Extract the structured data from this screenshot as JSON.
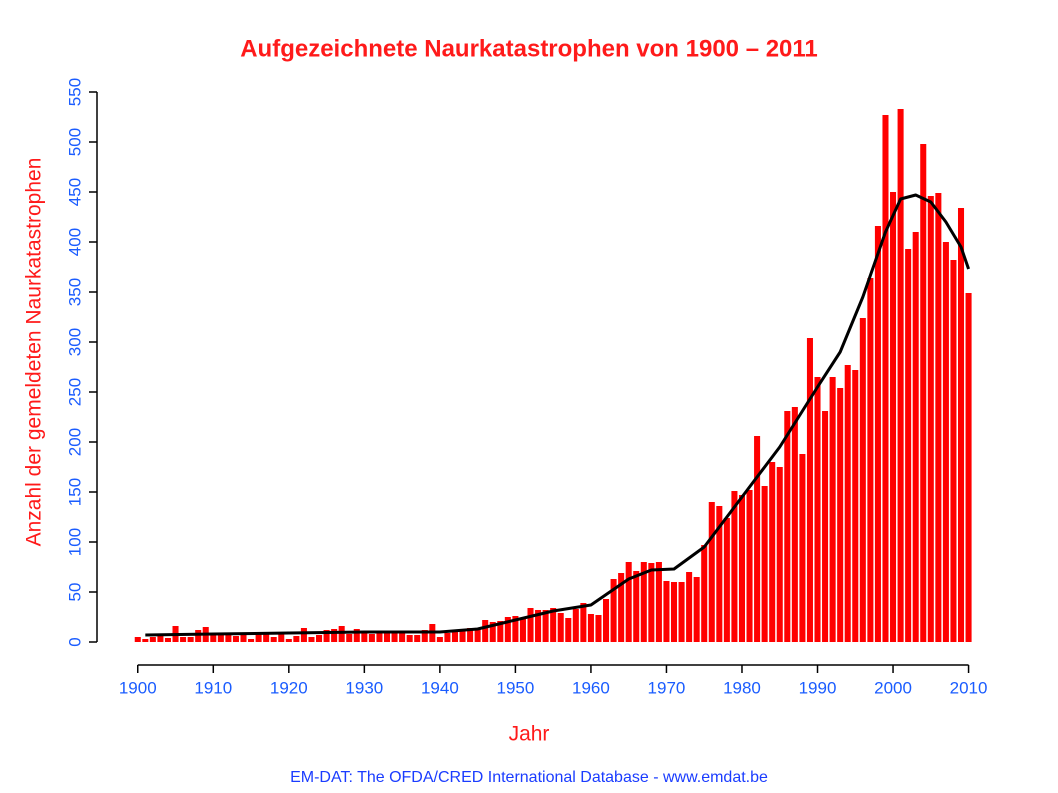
{
  "chart_data": {
    "type": "bar",
    "title": "Aufgezeichnete Naurkatastrophen von 1900 – 2011",
    "x_label": "Jahr",
    "y_label": "Anzahl der gemeldeten Naurkatastrophen",
    "source": "EM-DAT: The OFDA/CRED International Database - www.emdat.be",
    "x": [
      1900,
      1901,
      1902,
      1903,
      1904,
      1905,
      1906,
      1907,
      1908,
      1909,
      1910,
      1911,
      1912,
      1913,
      1914,
      1915,
      1916,
      1917,
      1918,
      1919,
      1920,
      1921,
      1922,
      1923,
      1924,
      1925,
      1926,
      1927,
      1928,
      1929,
      1930,
      1931,
      1932,
      1933,
      1934,
      1935,
      1936,
      1937,
      1938,
      1939,
      1940,
      1941,
      1942,
      1943,
      1944,
      1945,
      1946,
      1947,
      1948,
      1949,
      1950,
      1951,
      1952,
      1953,
      1954,
      1955,
      1956,
      1957,
      1958,
      1959,
      1960,
      1961,
      1962,
      1963,
      1964,
      1965,
      1966,
      1967,
      1968,
      1969,
      1970,
      1971,
      1972,
      1973,
      1974,
      1975,
      1976,
      1977,
      1978,
      1979,
      1980,
      1981,
      1982,
      1983,
      1984,
      1985,
      1986,
      1987,
      1988,
      1989,
      1990,
      1991,
      1992,
      1993,
      1994,
      1995,
      1996,
      1997,
      1998,
      1999,
      2000,
      2001,
      2002,
      2003,
      2004,
      2005,
      2006,
      2007,
      2008,
      2009,
      2010
    ],
    "values": [
      5,
      3,
      5,
      6,
      4,
      16,
      5,
      5,
      12,
      15,
      7,
      8,
      7,
      6,
      7,
      3,
      8,
      9,
      5,
      9,
      3,
      6,
      14,
      5,
      7,
      12,
      13,
      16,
      8,
      13,
      10,
      8,
      9,
      10,
      9,
      9,
      7,
      7,
      12,
      18,
      5,
      9,
      10,
      11,
      14,
      13,
      22,
      20,
      21,
      25,
      26,
      24,
      34,
      32,
      32,
      34,
      29,
      24,
      33,
      39,
      28,
      27,
      43,
      63,
      69,
      80,
      71,
      80,
      79,
      80,
      61,
      60,
      60,
      70,
      65,
      97,
      140,
      136,
      124,
      151,
      147,
      152,
      206,
      156,
      180,
      175,
      231,
      235,
      188,
      304,
      265,
      231,
      265,
      254,
      277,
      272,
      324,
      364,
      416,
      527,
      450,
      533,
      393,
      410,
      498,
      446,
      449,
      400,
      382,
      434,
      349
    ],
    "color": "#ff0000",
    "smooth": {
      "color": "#000000",
      "x": [
        1901,
        1910,
        1920,
        1930,
        1940,
        1945,
        1950,
        1955,
        1960,
        1965,
        1968,
        1971,
        1975,
        1980,
        1985,
        1990,
        1993,
        1996,
        1999,
        2001,
        2003,
        2005,
        2007,
        2009,
        2010
      ],
      "values": [
        7,
        8,
        9,
        10,
        10,
        13,
        22,
        31,
        37,
        63,
        72,
        73,
        95,
        145,
        195,
        255,
        290,
        345,
        410,
        443,
        447,
        440,
        420,
        395,
        373
      ]
    },
    "xlim": [
      1895,
      2013.5
    ],
    "ylim": [
      -23,
      557
    ],
    "xticks": [
      1900,
      1910,
      1920,
      1930,
      1940,
      1950,
      1960,
      1970,
      1980,
      1990,
      2000,
      2010
    ],
    "yticks": [
      0,
      50,
      100,
      150,
      200,
      250,
      300,
      350,
      400,
      450,
      500,
      550
    ]
  }
}
